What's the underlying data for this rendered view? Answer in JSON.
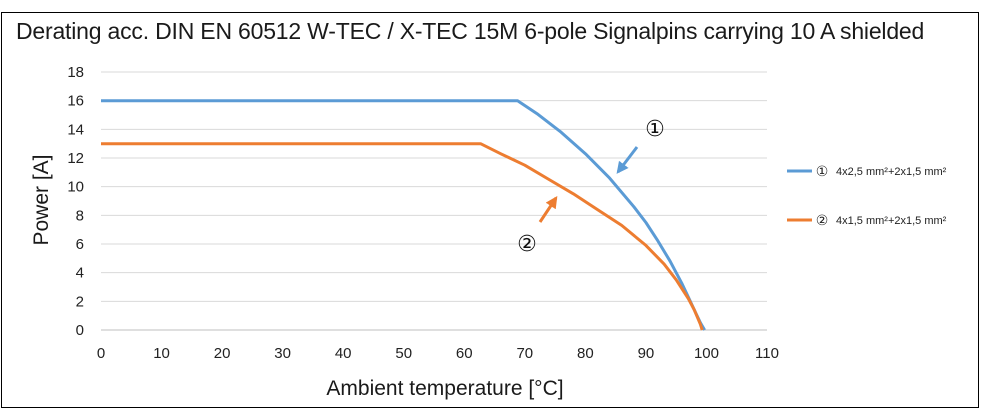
{
  "chart_data": {
    "type": "line",
    "title": "Derating acc. DIN EN 60512 W-TEC / X-TEC 15M 6-pole Signalpins carrying 10 A shielded",
    "xlabel": "Ambient temperature   [°C]",
    "ylabel": "Power   [A]",
    "xlim": [
      0,
      110
    ],
    "ylim": [
      0,
      18
    ],
    "xticks": [
      0,
      10,
      20,
      30,
      40,
      50,
      60,
      70,
      80,
      90,
      100,
      110
    ],
    "yticks": [
      0,
      2,
      4,
      6,
      8,
      10,
      12,
      14,
      16,
      18
    ],
    "grid": "horizontal",
    "legend_position": "right",
    "series": [
      {
        "name": "4x2,5 mm²+2x1,5 mm²",
        "marker": "①",
        "color": "#5B9BD5",
        "x": [
          0,
          68.8,
          72,
          76,
          80,
          84,
          88,
          90,
          92,
          94,
          96,
          97,
          98,
          99,
          99.7
        ],
        "y": [
          16,
          16,
          15.1,
          13.8,
          12.3,
          10.6,
          8.6,
          7.5,
          6.2,
          4.8,
          3.2,
          2.3,
          1.4,
          0.5,
          0
        ]
      },
      {
        "name": "4x1,5 mm²+2x1,5 mm²",
        "marker": "②",
        "color": "#ED7D31",
        "x": [
          0,
          62.7,
          66,
          70,
          74,
          78,
          82,
          86,
          90,
          93,
          95,
          97,
          98,
          99,
          99.3
        ],
        "y": [
          13,
          13,
          12.3,
          11.5,
          10.5,
          9.5,
          8.4,
          7.3,
          5.9,
          4.6,
          3.5,
          2.2,
          1.4,
          0.4,
          0
        ]
      }
    ],
    "annotations": [
      {
        "label": "①",
        "series": 0
      },
      {
        "label": "②",
        "series": 1
      }
    ]
  }
}
